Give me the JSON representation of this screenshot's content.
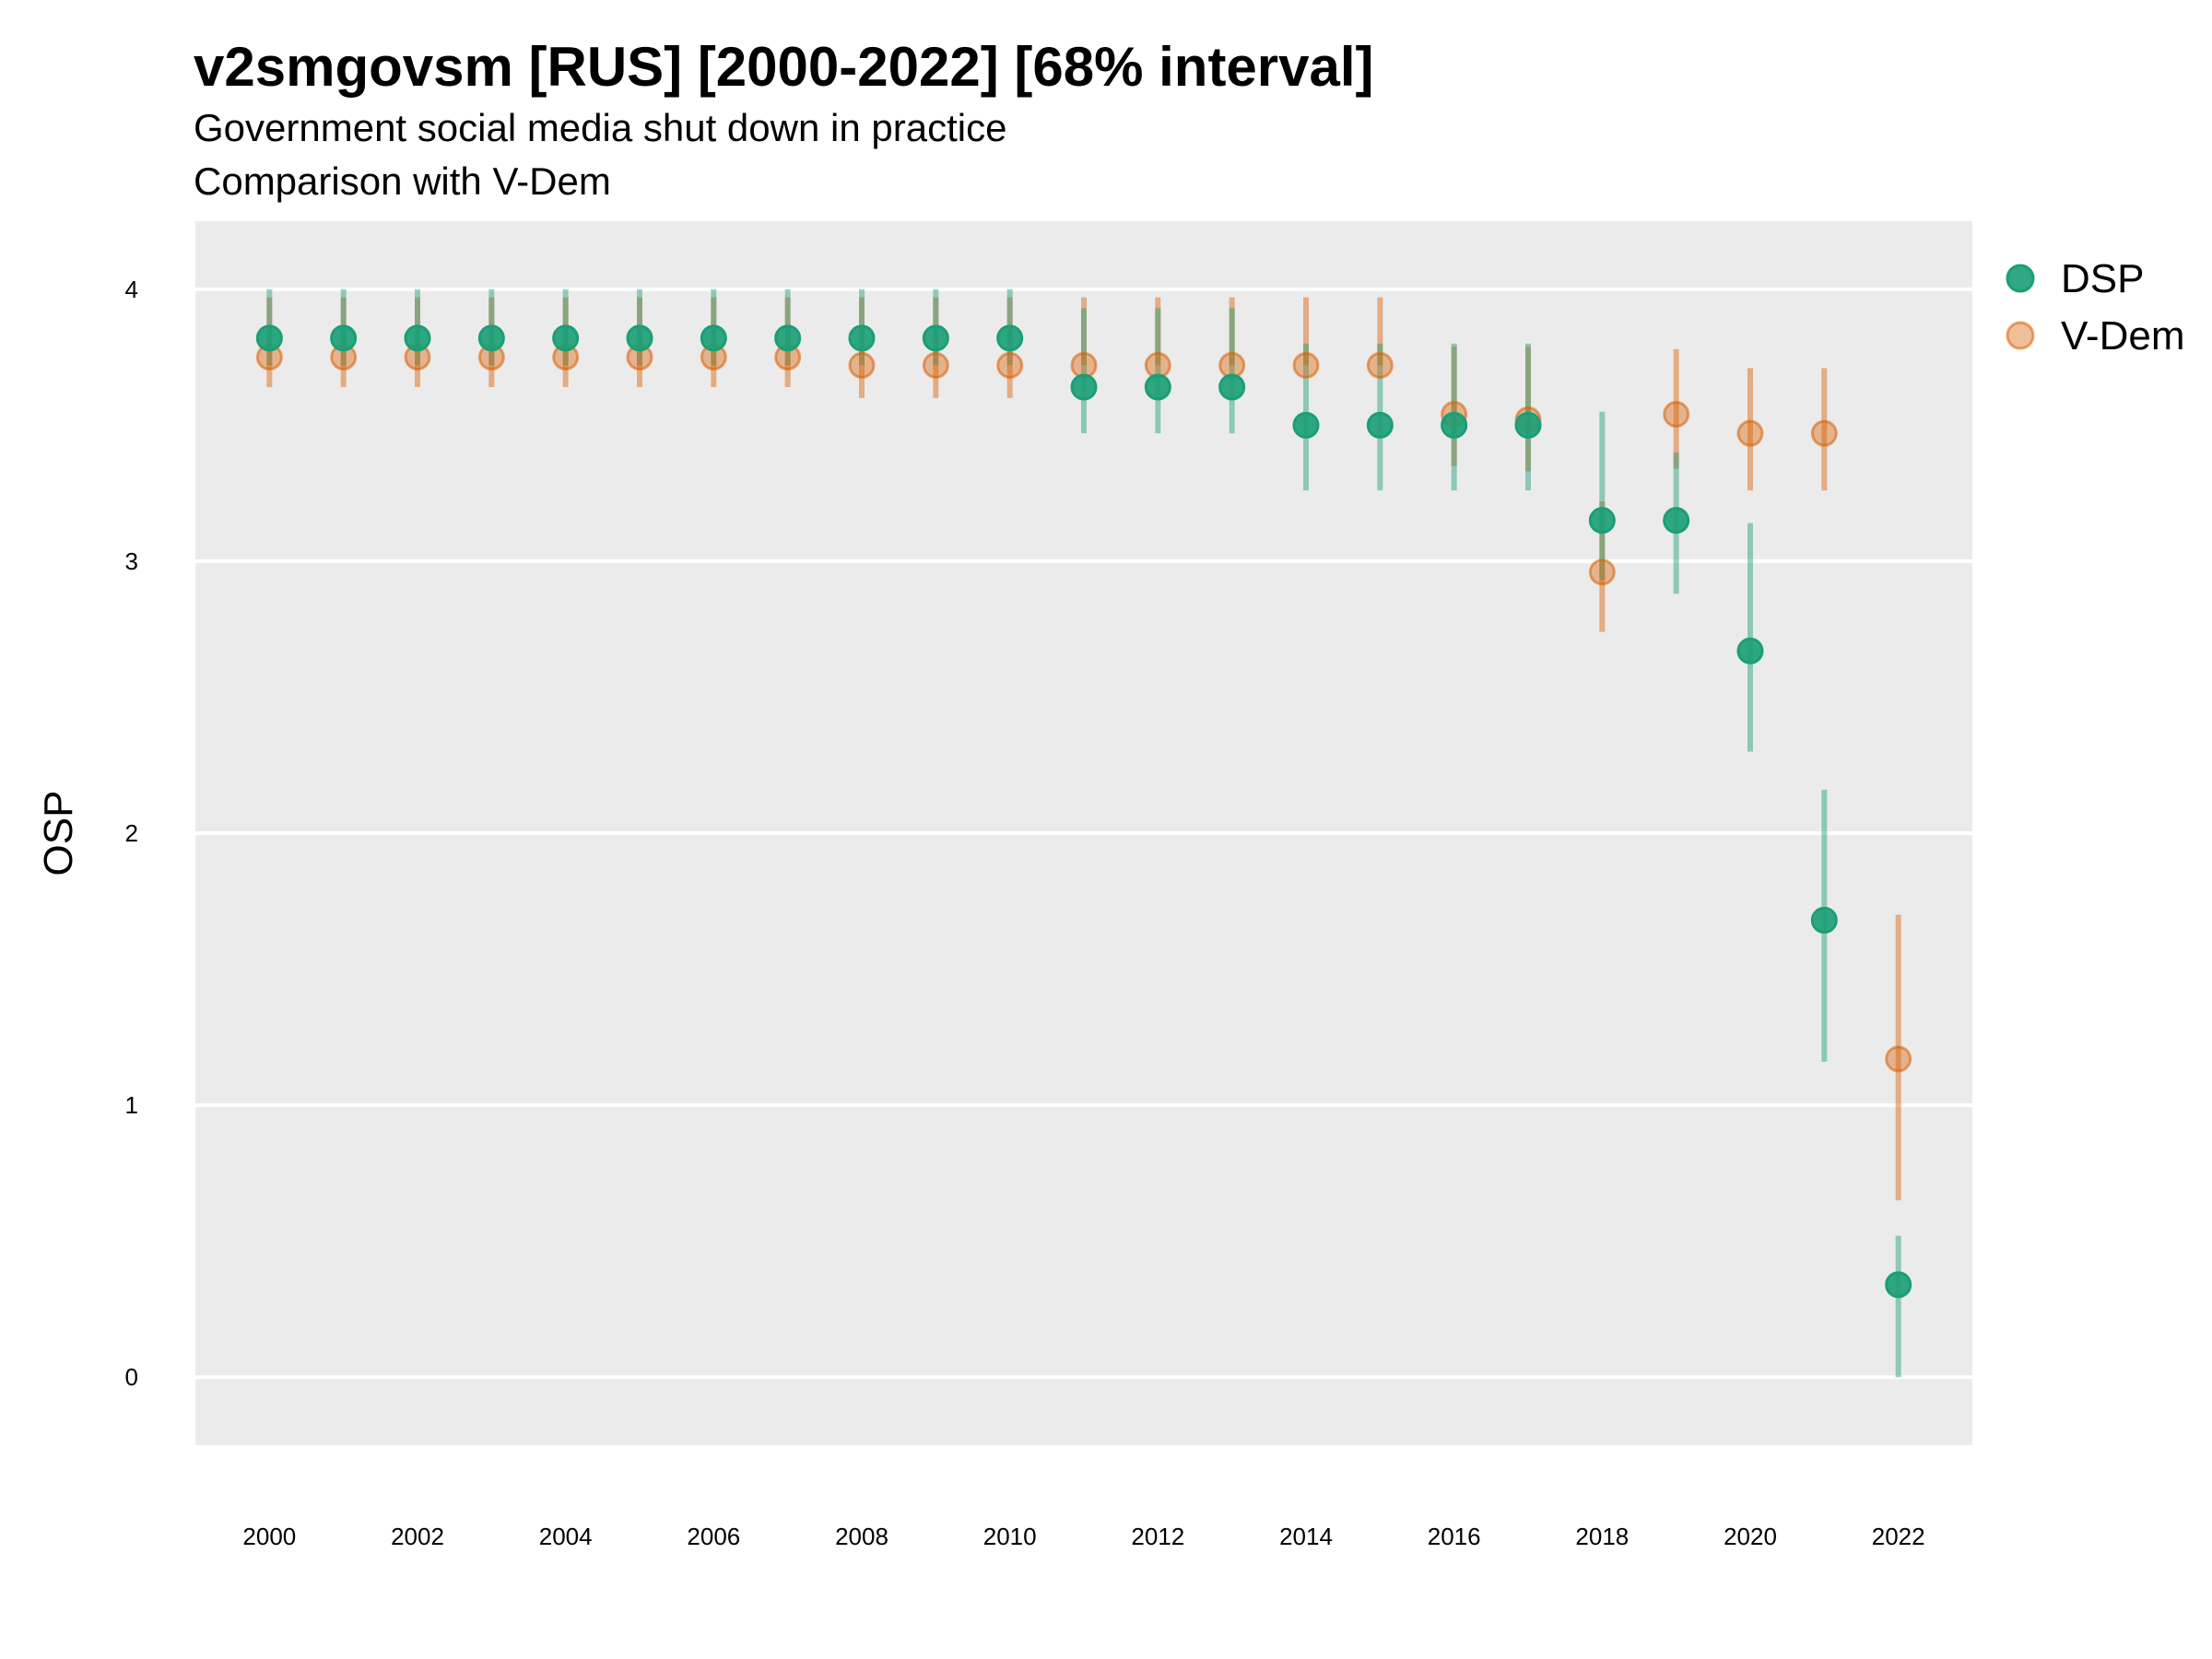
{
  "chart_data": {
    "type": "scatter",
    "title": "v2smgovsm [RUS] [2000-2022] [68% interval]",
    "subtitle": "Government social media shut down in practice",
    "subtitle2": "Comparison with V-Dem",
    "xlabel": "",
    "ylabel": "OSP",
    "xlim": [
      1999,
      2023
    ],
    "ylim": [
      -0.25,
      4.25
    ],
    "x_ticks": [
      2000,
      2002,
      2004,
      2006,
      2008,
      2010,
      2012,
      2014,
      2016,
      2018,
      2020,
      2022
    ],
    "y_ticks": [
      0,
      1,
      2,
      3,
      4
    ],
    "grid": true,
    "legend_position": "right",
    "series": [
      {
        "name": "DSP",
        "color": "#1b9e77",
        "x": [
          2000,
          2001,
          2002,
          2003,
          2004,
          2005,
          2006,
          2007,
          2008,
          2009,
          2010,
          2011,
          2012,
          2013,
          2014,
          2015,
          2016,
          2017,
          2018,
          2019,
          2020,
          2021,
          2022
        ],
        "y": [
          3.82,
          3.82,
          3.82,
          3.82,
          3.82,
          3.82,
          3.82,
          3.82,
          3.82,
          3.82,
          3.82,
          3.64,
          3.64,
          3.64,
          3.5,
          3.5,
          3.5,
          3.5,
          3.15,
          3.15,
          2.67,
          1.68,
          0.34
        ],
        "lower": [
          3.72,
          3.72,
          3.72,
          3.72,
          3.72,
          3.72,
          3.72,
          3.72,
          3.72,
          3.72,
          3.72,
          3.47,
          3.47,
          3.47,
          3.26,
          3.26,
          3.26,
          3.26,
          2.93,
          2.88,
          2.3,
          1.16,
          0.0
        ],
        "upper": [
          4.0,
          4.0,
          4.0,
          4.0,
          4.0,
          4.0,
          4.0,
          4.0,
          4.0,
          4.0,
          4.0,
          3.93,
          3.93,
          3.93,
          3.8,
          3.8,
          3.8,
          3.8,
          3.55,
          3.4,
          3.14,
          2.16,
          0.52
        ]
      },
      {
        "name": "V-Dem",
        "color": "#d95f02",
        "x": [
          2000,
          2001,
          2002,
          2003,
          2004,
          2005,
          2006,
          2007,
          2008,
          2009,
          2010,
          2011,
          2012,
          2013,
          2014,
          2015,
          2016,
          2017,
          2018,
          2019,
          2020,
          2021,
          2022
        ],
        "y": [
          3.75,
          3.75,
          3.75,
          3.75,
          3.75,
          3.75,
          3.75,
          3.75,
          3.72,
          3.72,
          3.72,
          3.72,
          3.72,
          3.72,
          3.72,
          3.72,
          3.54,
          3.52,
          2.96,
          3.54,
          3.47,
          3.47,
          1.17
        ],
        "lower": [
          3.64,
          3.64,
          3.64,
          3.64,
          3.64,
          3.64,
          3.64,
          3.64,
          3.6,
          3.6,
          3.6,
          3.72,
          3.72,
          3.72,
          3.72,
          3.72,
          3.35,
          3.33,
          2.74,
          3.34,
          3.26,
          3.26,
          0.65
        ],
        "upper": [
          3.97,
          3.97,
          3.97,
          3.97,
          3.97,
          3.97,
          3.97,
          3.97,
          3.97,
          3.97,
          3.97,
          3.97,
          3.97,
          3.97,
          3.97,
          3.97,
          3.79,
          3.79,
          3.22,
          3.78,
          3.71,
          3.71,
          1.7
        ]
      }
    ]
  }
}
